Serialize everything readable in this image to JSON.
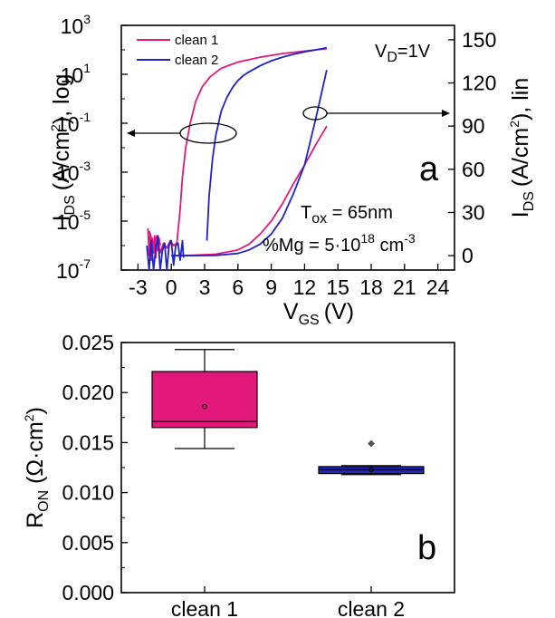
{
  "chart_data": [
    {
      "type": "line",
      "panel_label": "a",
      "xlabel_main": "V",
      "xlabel_sub": "GS",
      "xlabel_unit": "(V)",
      "x_ticks": [
        "-3",
        "0",
        "3",
        "6",
        "9",
        "12",
        "15",
        "18",
        "21",
        "24"
      ],
      "xlim": [
        -4.5,
        25.5
      ],
      "ylabel_left": {
        "main": "I",
        "sub": "DS",
        "unit": "(A/cm",
        "sup": "2",
        "close": "), log"
      },
      "ylabel_right": {
        "main": "I",
        "sub": "DS",
        "unit": "(A/cm",
        "sup": "2",
        "close": "), lin"
      },
      "y_left_scale": "log",
      "y_left_ticks": [
        {
          "base": "10",
          "exp": "3"
        },
        {
          "base": "10",
          "exp": "1"
        },
        {
          "base": "10",
          "exp": "-1"
        },
        {
          "base": "10",
          "exp": "-3"
        },
        {
          "base": "10",
          "exp": "-5"
        },
        {
          "base": "10",
          "exp": "-7"
        }
      ],
      "y_left_ticks_exp_values": [
        3,
        1,
        -1,
        -3,
        -5,
        -7
      ],
      "ylim_left_exp": [
        -7,
        3
      ],
      "y_right_ticks": [
        "150",
        "120",
        "90",
        "60",
        "30",
        "0"
      ],
      "y_right_tick_values": [
        150,
        120,
        90,
        60,
        30,
        0
      ],
      "ylim_right": [
        -10,
        160
      ],
      "legend": [
        {
          "name": "clean 1",
          "color": "#e0197a"
        },
        {
          "name": "clean 2",
          "color": "#1f23c8"
        }
      ],
      "legend_position": "top-left",
      "annotations": {
        "vd": {
          "main": "V",
          "sub": "D",
          "rest": "=1V"
        },
        "tox": {
          "main": "T",
          "sub": "ox",
          "rest": " = 65nm"
        },
        "mg": {
          "text": "%Mg = 5·10",
          "sup": "18",
          "unit": " cm",
          "unit_sup": "-3"
        }
      },
      "series": [
        {
          "name": "clean 1",
          "color": "#e0197a",
          "axis": "log",
          "x": [
            -2.0,
            -1.6,
            -1.3,
            -1.0,
            -0.7,
            -0.4,
            -0.1,
            0.2,
            0.5,
            0.8,
            1.0,
            1.3,
            1.7,
            2.2,
            2.8,
            3.5,
            4.5,
            6.0,
            8.0,
            10.0,
            12.0,
            14.0
          ],
          "y_log10": [
            -5.4,
            -6.0,
            -5.6,
            -6.3,
            -5.9,
            -6.1,
            -5.8,
            -6.0,
            -5.9,
            -4.5,
            -3.2,
            -2.0,
            -1.0,
            -0.1,
            0.5,
            0.9,
            1.25,
            1.5,
            1.7,
            1.85,
            1.95,
            2.05
          ]
        },
        {
          "name": "clean 2",
          "color": "#1f23c8",
          "axis": "log",
          "x": [
            3.2,
            3.4,
            3.7,
            4.0,
            4.5,
            5.0,
            5.5,
            6.0,
            6.5,
            7.0,
            8.0,
            9.0,
            10.0,
            11.0,
            12.0,
            13.0,
            14.0
          ],
          "y_log10": [
            -5.8,
            -4.0,
            -2.5,
            -1.5,
            -0.5,
            0.05,
            0.45,
            0.75,
            0.95,
            1.1,
            1.35,
            1.55,
            1.7,
            1.82,
            1.92,
            2.0,
            2.08
          ]
        },
        {
          "name": "clean 1",
          "color": "#e0197a",
          "axis": "lin",
          "x": [
            0,
            2,
            4,
            6,
            7,
            8,
            9,
            10,
            11,
            12,
            13,
            14
          ],
          "y": [
            0,
            0.3,
            1,
            4,
            8,
            15,
            24,
            36,
            50,
            63,
            77,
            90
          ]
        },
        {
          "name": "clean 2",
          "color": "#1f23c8",
          "axis": "lin",
          "x": [
            0,
            2,
            4,
            6,
            7,
            8,
            9,
            10,
            11,
            12,
            13,
            14
          ],
          "y": [
            0,
            0,
            0.2,
            1.5,
            4,
            8,
            15,
            26,
            43,
            63,
            95,
            129
          ]
        },
        {
          "name": "clean 1",
          "color": "#e0197a",
          "axis": "log",
          "role": "noise",
          "x": [
            -2.1,
            -2.0,
            -1.9,
            -1.8,
            -1.7,
            -1.6,
            -1.5,
            -1.4,
            -1.3,
            -1.2,
            -1.1,
            -1.0
          ],
          "y_log10": [
            -5.3,
            -6.4,
            -5.5,
            -6.6,
            -5.7,
            -6.3,
            -5.6,
            -6.5,
            -5.8,
            -6.2,
            -5.7,
            -6.0
          ]
        },
        {
          "name": "clean 2",
          "color": "#1f23c8",
          "axis": "log",
          "role": "noise",
          "x": [
            -2.2,
            -2.0,
            -1.8,
            -1.6,
            -1.4,
            -1.2,
            -1.0,
            -0.8,
            -0.6,
            -0.4,
            -0.2,
            0.0,
            0.2,
            0.4,
            0.6,
            0.8,
            1.0,
            1.1
          ],
          "y_log10": [
            -6.0,
            -7.0,
            -5.8,
            -7.0,
            -6.1,
            -5.6,
            -7.0,
            -6.2,
            -5.9,
            -7.0,
            -6.0,
            -5.8,
            -6.8,
            -6.0,
            -5.9,
            -6.6,
            -5.8,
            -6.5
          ]
        }
      ]
    },
    {
      "type": "box",
      "panel_label": "b",
      "ylabel": {
        "main": "R",
        "sub": "ON",
        "unit": " (Ω·cm",
        "sup": "2",
        "close": ")"
      },
      "ylim": [
        0,
        0.025
      ],
      "y_ticks": [
        "0.025",
        "0.020",
        "0.015",
        "0.010",
        "0.005",
        "0.000"
      ],
      "y_tick_values": [
        0.025,
        0.02,
        0.015,
        0.01,
        0.005,
        0.0
      ],
      "categories": [
        "clean 1",
        "clean 2"
      ],
      "boxes": [
        {
          "name": "clean 1",
          "color": "#e0197a",
          "whisker_low": 0.0144,
          "q1": 0.0165,
          "median": 0.0171,
          "q3": 0.0221,
          "whisker_high": 0.0243,
          "mean": 0.0186,
          "outliers": []
        },
        {
          "name": "clean 2",
          "color": "#1f23c8",
          "whisker_low": 0.0118,
          "q1": 0.0119,
          "median": 0.0123,
          "q3": 0.0126,
          "whisker_high": 0.0127,
          "mean": 0.0123,
          "outliers": [
            0.0149
          ]
        }
      ]
    }
  ]
}
